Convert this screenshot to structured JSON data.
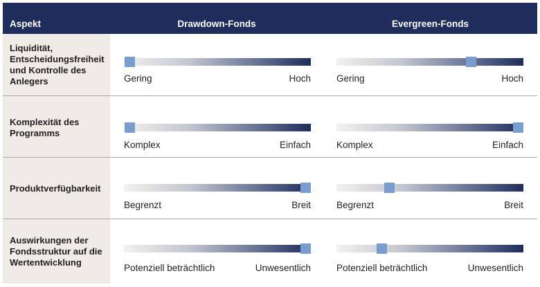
{
  "header": {
    "aspect": "Aspekt",
    "col1": "Drawdown-Fonds",
    "col2": "Evergreen-Fonds"
  },
  "rows": [
    {
      "label": "Liquidität, Entscheidungsfreiheit und Kontrolle des Anlegers",
      "drawdown": {
        "min": "Gering",
        "max": "Hoch",
        "level": 0.03
      },
      "evergreen": {
        "min": "Gering",
        "max": "Hoch",
        "level": 0.72
      }
    },
    {
      "label": "Komplexität des Programms",
      "drawdown": {
        "min": "Komplex",
        "max": "Einfach",
        "level": 0.03
      },
      "evergreen": {
        "min": "Komplex",
        "max": "Einfach",
        "level": 0.97
      }
    },
    {
      "label": "Produktverfügbarkeit",
      "drawdown": {
        "min": "Begrenzt",
        "max": "Breit",
        "level": 0.97
      },
      "evergreen": {
        "min": "Begrenzt",
        "max": "Breit",
        "level": 0.28
      }
    },
    {
      "label": "Auswirkungen der Fondsstruktur auf die Wertentwicklung",
      "drawdown": {
        "min": "Potenziell beträchtlich",
        "max": "Unwesentlich",
        "level": 0.97
      },
      "evergreen": {
        "min": "Potenziell beträchtlich",
        "max": "Unwesentlich",
        "level": 0.24
      }
    }
  ],
  "colors": {
    "header_bg": "#1f2d5c",
    "label_bg": "#efebe7",
    "thumb": "#7a9dcf",
    "bar_end": "#1f2d5c"
  }
}
